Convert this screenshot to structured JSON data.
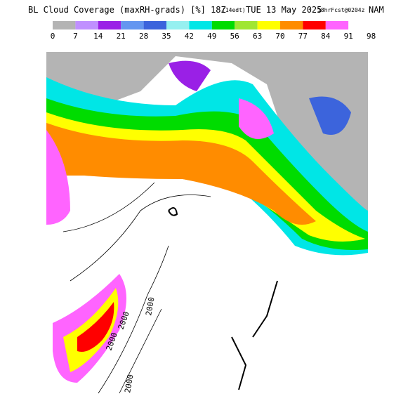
{
  "header": {
    "title": "BL Cloud Coverage (maxRH-grads) [%] 18Z",
    "time_note": "(14edt)",
    "date": "TUE 13 May 2025",
    "forecast": "18hrFcst@0204z",
    "model": "NAM"
  },
  "colorbar": {
    "colors": [
      "#b4b4b4",
      "#c090ff",
      "#9a20e6",
      "#6496f0",
      "#3c64dc",
      "#96f0f0",
      "#00e6e6",
      "#00dc00",
      "#a0e632",
      "#ffff00",
      "#ff8c00",
      "#ff0000",
      "#ff64ff",
      "#ffffff"
    ],
    "ticks": [
      0,
      7,
      14,
      21,
      28,
      35,
      42,
      49,
      56,
      63,
      70,
      77,
      84,
      91,
      98
    ]
  },
  "contour_labels": [
    "2000",
    "2000",
    "2000",
    "2000"
  ]
}
